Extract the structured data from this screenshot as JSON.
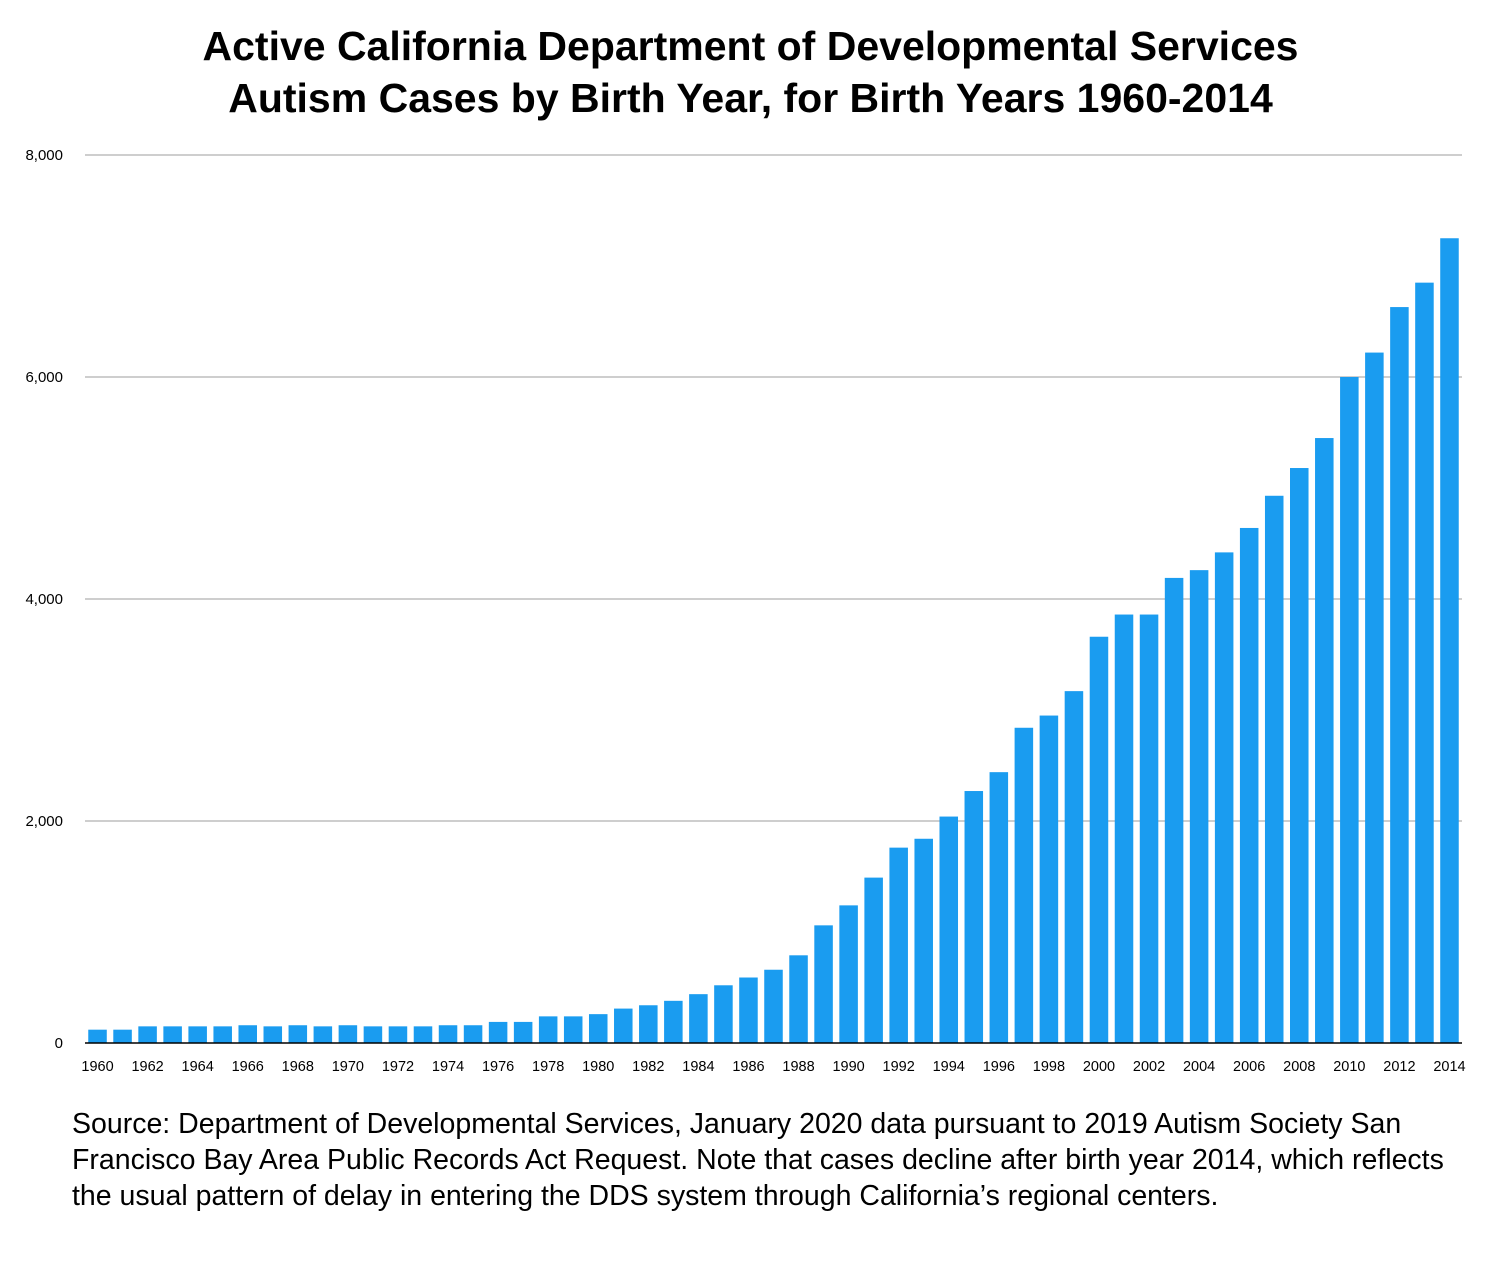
{
  "chart_data": {
    "type": "bar",
    "title": "Active California Department of Developmental Services Autism Cases by Birth Year, for Birth Years 1960-2014",
    "title_lines": [
      "Active California Department of Developmental Services",
      "Autism Cases by Birth Year, for Birth Years 1960-2014"
    ],
    "xlabel": "",
    "ylabel": "",
    "ylim": [
      0,
      8000
    ],
    "yticks": [
      0,
      2000,
      4000,
      6000,
      8000
    ],
    "ytick_labels": [
      "0",
      "2,000",
      "4,000",
      "6,000",
      "8,000"
    ],
    "grid": true,
    "bar_color": "#1a9cf0",
    "categories": [
      "1960",
      "1961",
      "1962",
      "1963",
      "1964",
      "1965",
      "1966",
      "1967",
      "1968",
      "1969",
      "1970",
      "1971",
      "1972",
      "1973",
      "1974",
      "1975",
      "1976",
      "1977",
      "1978",
      "1979",
      "1980",
      "1981",
      "1982",
      "1983",
      "1984",
      "1985",
      "1986",
      "1987",
      "1988",
      "1989",
      "1990",
      "1991",
      "1992",
      "1993",
      "1994",
      "1995",
      "1996",
      "1997",
      "1998",
      "1999",
      "2000",
      "2001",
      "2002",
      "2003",
      "2004",
      "2005",
      "2006",
      "2007",
      "2008",
      "2009",
      "2010",
      "2011",
      "2012",
      "2013",
      "2014"
    ],
    "xtick_labels": [
      "1960",
      "1962",
      "1964",
      "1966",
      "1968",
      "1970",
      "1972",
      "1974",
      "1976",
      "1978",
      "1980",
      "1982",
      "1984",
      "1986",
      "1988",
      "1990",
      "1992",
      "1994",
      "1996",
      "1998",
      "2000",
      "2002",
      "2004",
      "2006",
      "2008",
      "2010",
      "2012",
      "2014"
    ],
    "values": [
      120,
      120,
      150,
      150,
      150,
      150,
      160,
      150,
      160,
      150,
      160,
      150,
      150,
      150,
      160,
      160,
      190,
      190,
      240,
      240,
      260,
      310,
      340,
      380,
      440,
      520,
      590,
      660,
      790,
      1060,
      1240,
      1490,
      1760,
      1840,
      2040,
      2270,
      2440,
      2840,
      2950,
      3170,
      3660,
      3860,
      3860,
      4190,
      4260,
      4420,
      4640,
      4930,
      5180,
      5450,
      6000,
      6220,
      6630,
      6850,
      7250
    ]
  },
  "source_note": "Source: Department of Developmental Services, January 2020 data pursuant to 2019 Autism Society San Francisco Bay Area Public Records Act Request. Note that cases decline after birth year 2014, which reflects the usual pattern of delay in entering the DDS system through California’s regional centers."
}
